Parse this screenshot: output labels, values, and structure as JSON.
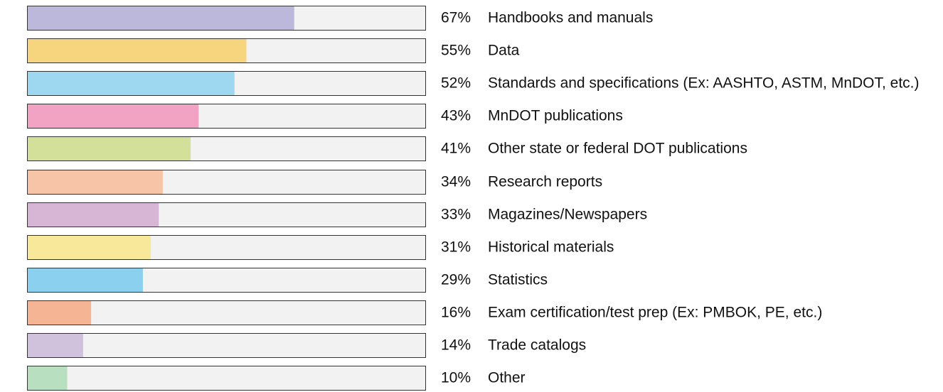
{
  "chart_data": {
    "type": "bar",
    "orientation": "horizontal",
    "categories": [
      "Handbooks and manuals",
      "Data",
      "Standards and specifications (Ex: AASHTO, ASTM, MnDOT, etc.)",
      "MnDOT publications",
      "Other state or federal DOT publications",
      "Research reports",
      "Magazines/Newspapers",
      "Historical materials",
      "Statistics",
      "Exam certification/test prep (Ex: PMBOK, PE, etc.)",
      "Trade catalogs",
      "Other"
    ],
    "values": [
      67,
      55,
      52,
      43,
      41,
      34,
      33,
      31,
      29,
      16,
      14,
      10
    ],
    "value_labels": [
      "67%",
      "55%",
      "52%",
      "43%",
      "41%",
      "34%",
      "33%",
      "31%",
      "29%",
      "16%",
      "14%",
      "10%"
    ],
    "colors": [
      "#bcb8dc",
      "#f7d57e",
      "#9dd7f0",
      "#f2a3c4",
      "#d3e09a",
      "#f7c4a8",
      "#d6b6d4",
      "#f8e89a",
      "#8bd0ef",
      "#f5b595",
      "#d0c2dc",
      "#b8e0c0"
    ],
    "xlim": [
      0,
      100
    ]
  }
}
